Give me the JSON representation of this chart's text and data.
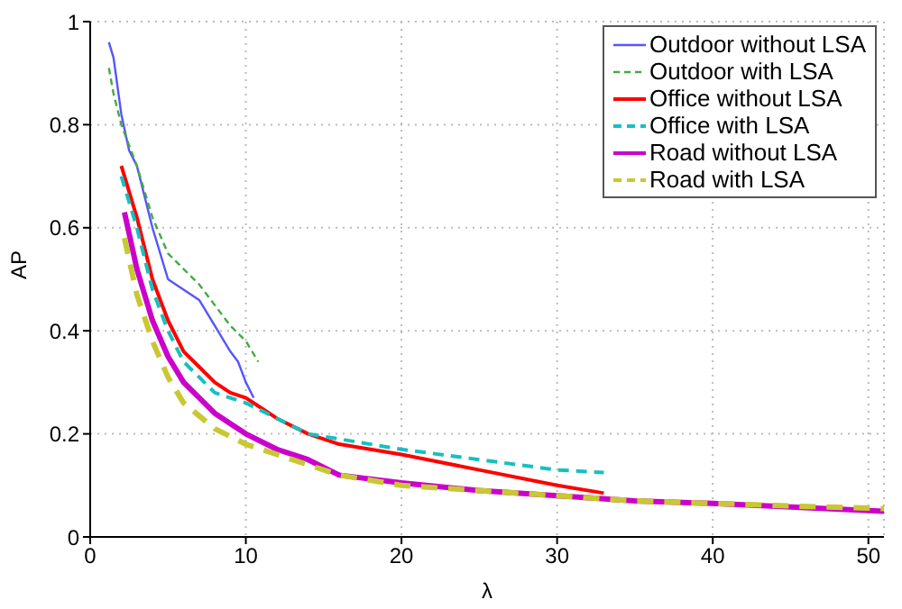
{
  "chart_data": {
    "type": "line",
    "xlabel": "λ",
    "ylabel": "AP",
    "xlim": [
      0,
      51
    ],
    "ylim": [
      0,
      1
    ],
    "xticks": [
      0,
      10,
      20,
      30,
      40,
      50
    ],
    "yticks": [
      0,
      0.2,
      0.4,
      0.6,
      0.8,
      1
    ],
    "grid": true,
    "legend": "top right",
    "marker": "none",
    "series": [
      {
        "name": "Outdoor without LSA",
        "color": "#5555ff",
        "line_style": "solid",
        "x": [
          1.2,
          1.5,
          2,
          2.5,
          3,
          4,
          5,
          6,
          7,
          8,
          9,
          9.5,
          10,
          10.5
        ],
        "values": [
          0.96,
          0.93,
          0.82,
          0.75,
          0.72,
          0.6,
          0.5,
          0.48,
          0.46,
          0.41,
          0.36,
          0.34,
          0.3,
          0.27
        ]
      },
      {
        "name": "Outdoor with LSA",
        "color": "#44aa44",
        "line_style": "dashed",
        "x": [
          1.2,
          1.5,
          2,
          3,
          4,
          5,
          6,
          7,
          8,
          9,
          10,
          10.8
        ],
        "values": [
          0.91,
          0.86,
          0.8,
          0.72,
          0.62,
          0.55,
          0.52,
          0.49,
          0.45,
          0.41,
          0.38,
          0.34
        ]
      },
      {
        "name": "Office without LSA",
        "color": "#ff0000",
        "line_style": "solid",
        "x": [
          2,
          3,
          4,
          5,
          6,
          7,
          8,
          9,
          10,
          11,
          12,
          14,
          16,
          20,
          25,
          30,
          33
        ],
        "values": [
          0.72,
          0.62,
          0.5,
          0.42,
          0.36,
          0.33,
          0.3,
          0.28,
          0.27,
          0.25,
          0.23,
          0.2,
          0.18,
          0.16,
          0.13,
          0.1,
          0.085
        ]
      },
      {
        "name": "Office with LSA",
        "color": "#17c0c0",
        "line_style": "dashed",
        "x": [
          2,
          3,
          4,
          5,
          6,
          7,
          8,
          9,
          10,
          12,
          14,
          16,
          20,
          25,
          30,
          33
        ],
        "values": [
          0.7,
          0.6,
          0.48,
          0.4,
          0.34,
          0.31,
          0.28,
          0.27,
          0.26,
          0.23,
          0.2,
          0.19,
          0.17,
          0.15,
          0.13,
          0.125
        ]
      },
      {
        "name": "Road without LSA",
        "color": "#cc00cc",
        "line_style": "solid",
        "x": [
          2.2,
          3,
          4,
          5,
          6,
          8,
          10,
          12,
          14,
          16,
          20,
          25,
          30,
          35,
          40,
          45,
          51
        ],
        "values": [
          0.63,
          0.52,
          0.42,
          0.35,
          0.3,
          0.24,
          0.2,
          0.17,
          0.15,
          0.12,
          0.105,
          0.09,
          0.08,
          0.07,
          0.065,
          0.058,
          0.05
        ]
      },
      {
        "name": "Road with LSA",
        "color": "#c8c832",
        "line_style": "dashed",
        "x": [
          2.2,
          3,
          4,
          5,
          6,
          8,
          10,
          12,
          14,
          16,
          20,
          25,
          30,
          35,
          40,
          45,
          51
        ],
        "values": [
          0.58,
          0.47,
          0.38,
          0.31,
          0.26,
          0.21,
          0.18,
          0.16,
          0.14,
          0.12,
          0.1,
          0.09,
          0.08,
          0.07,
          0.065,
          0.06,
          0.055
        ]
      }
    ]
  }
}
